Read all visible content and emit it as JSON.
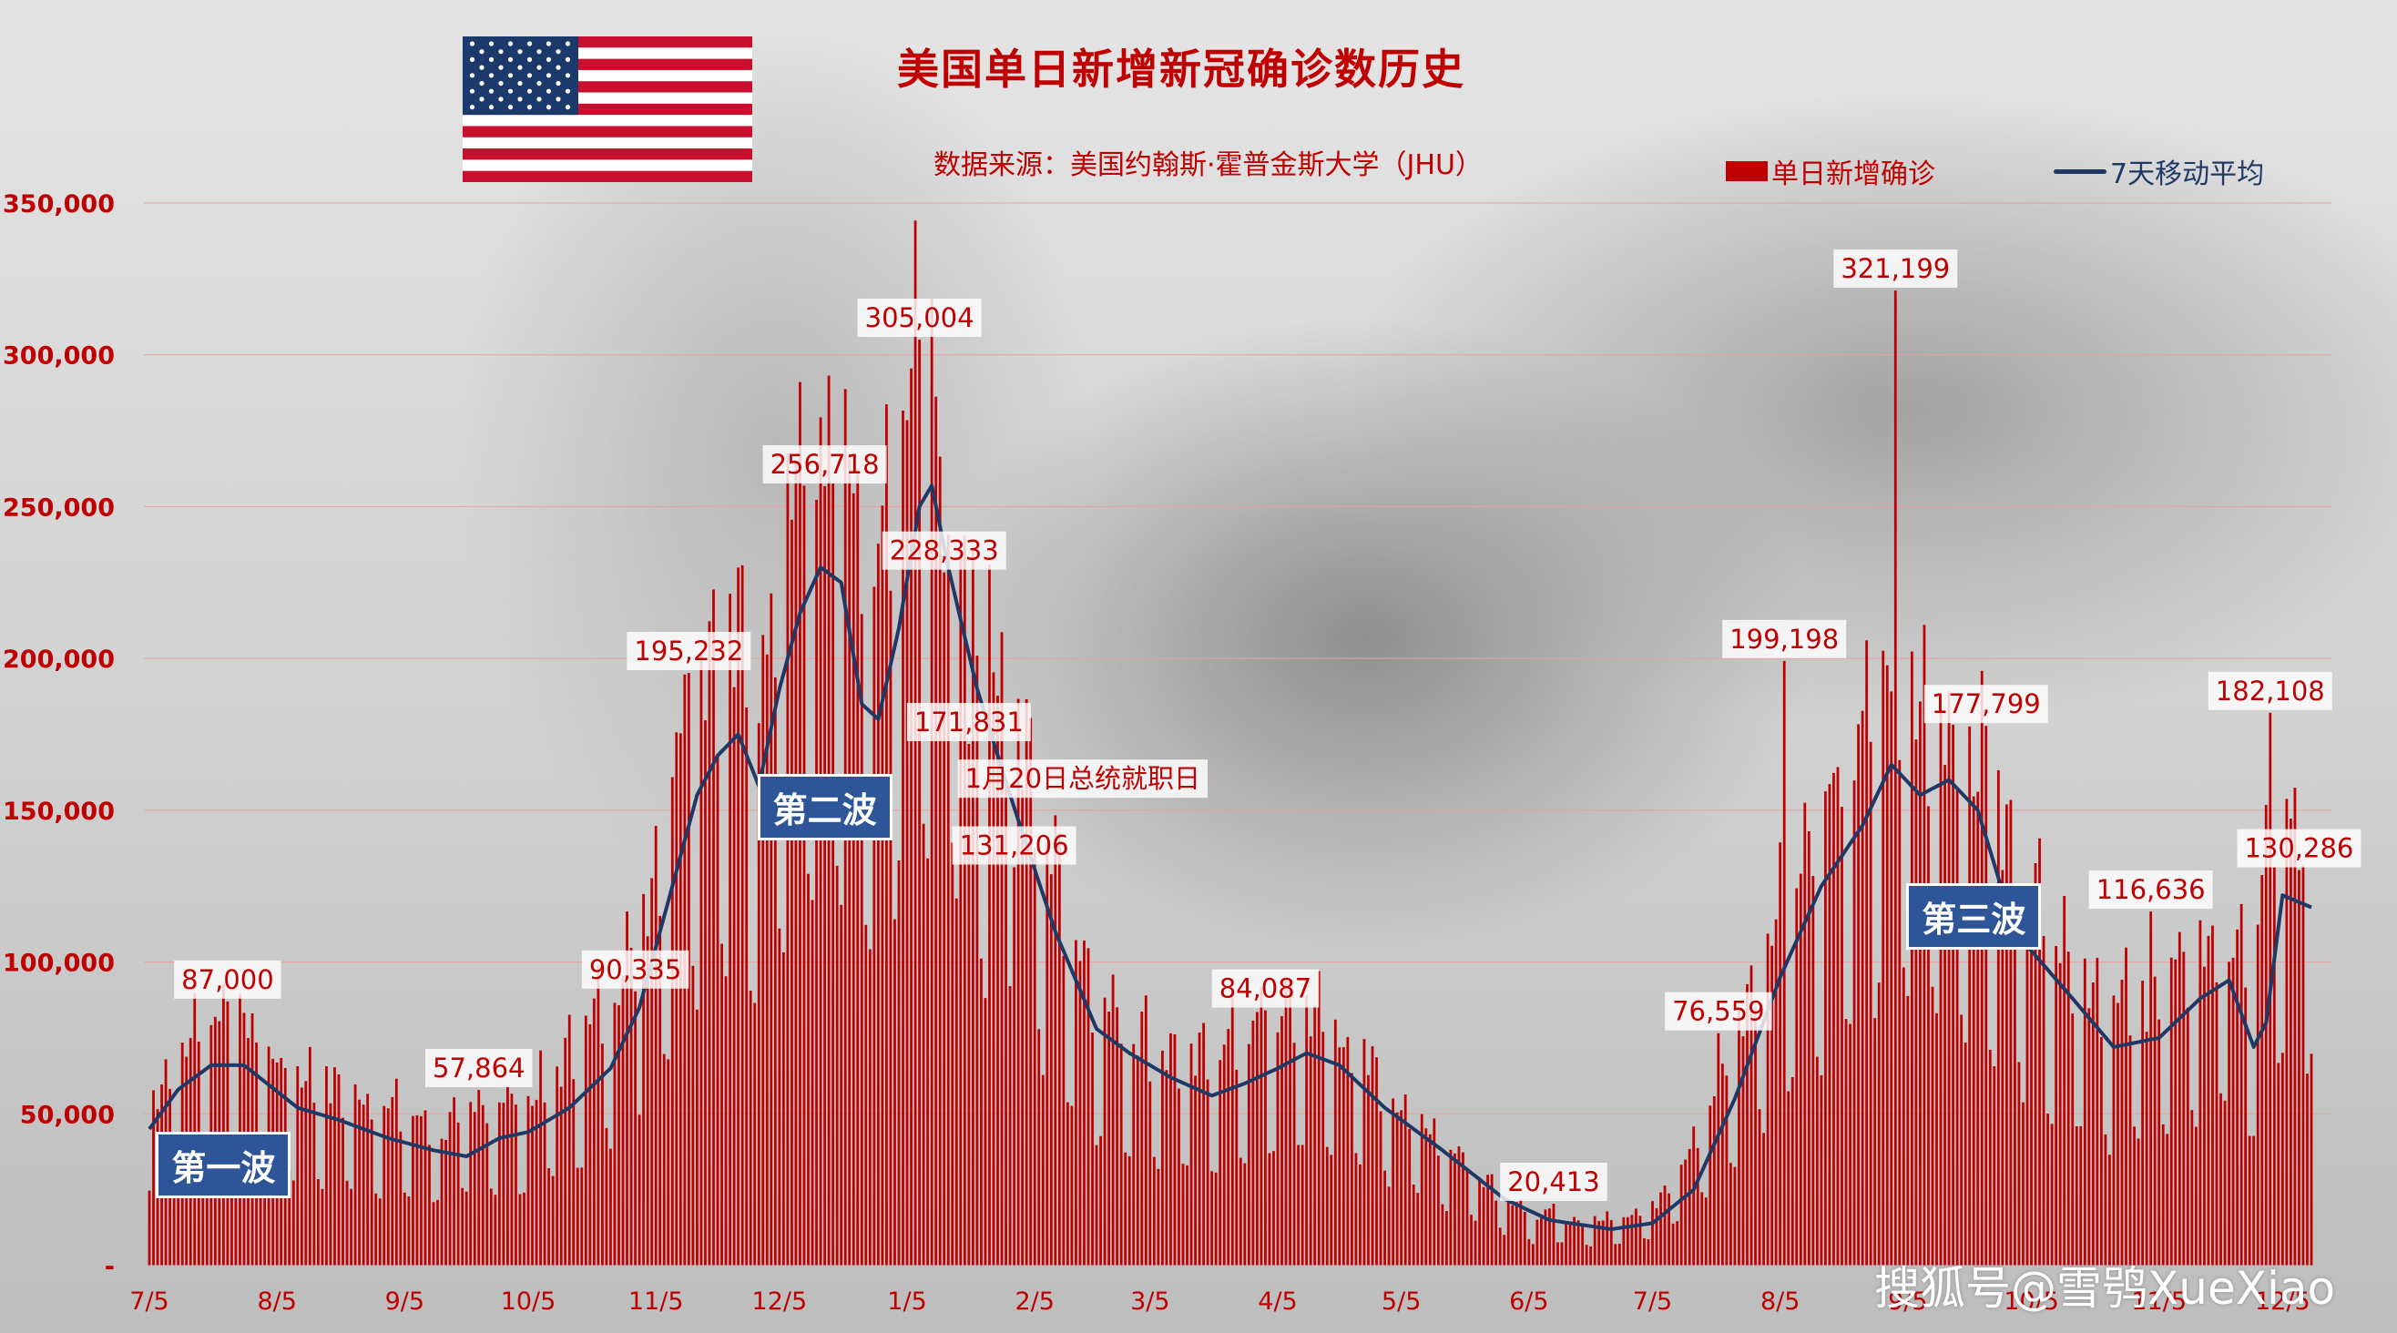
{
  "title": "美国单日新增新冠确诊数历史",
  "subtitle": "数据来源：美国约翰斯·霍普金斯大学（JHU）",
  "watermark": "搜狐号@雪鸮XueXiao",
  "colors": {
    "bars": "#c00000",
    "line": "#203864",
    "wave_box": "#2e5597",
    "label_text": "#c00000"
  },
  "icons": {
    "flag": "us-flag-icon"
  },
  "chart_data": {
    "type": "bar",
    "legend": {
      "position": "top-right",
      "bar_label": "单日新增确诊",
      "line_label": "7天移动平均"
    },
    "ylim": [
      0,
      350000
    ],
    "grid": true,
    "y_ticks": [
      {
        "value": 0,
        "label": "-"
      },
      {
        "value": 50000,
        "label": "50,000"
      },
      {
        "value": 100000,
        "label": "100,000"
      },
      {
        "value": 150000,
        "label": "150,000"
      },
      {
        "value": 200000,
        "label": "200,000"
      },
      {
        "value": 250000,
        "label": "250,000"
      },
      {
        "value": 300000,
        "label": "300,000"
      },
      {
        "value": 350000,
        "label": "350,000"
      }
    ],
    "x_range": [
      "2020-07-05",
      "2021-12-12"
    ],
    "x_ticks": [
      {
        "date": "2020-07-05",
        "label": "7/5"
      },
      {
        "date": "2020-08-05",
        "label": "8/5"
      },
      {
        "date": "2020-09-05",
        "label": "9/5"
      },
      {
        "date": "2020-10-05",
        "label": "10/5"
      },
      {
        "date": "2020-11-05",
        "label": "11/5"
      },
      {
        "date": "2020-12-05",
        "label": "12/5"
      },
      {
        "date": "2021-01-05",
        "label": "1/5"
      },
      {
        "date": "2021-02-05",
        "label": "2/5"
      },
      {
        "date": "2021-03-05",
        "label": "3/5"
      },
      {
        "date": "2021-04-05",
        "label": "4/5"
      },
      {
        "date": "2021-05-05",
        "label": "5/5"
      },
      {
        "date": "2021-06-05",
        "label": "6/5"
      },
      {
        "date": "2021-07-05",
        "label": "7/5"
      },
      {
        "date": "2021-08-05",
        "label": "8/5"
      },
      {
        "date": "2021-09-05",
        "label": "9/5"
      },
      {
        "date": "2021-10-05",
        "label": "10/5"
      },
      {
        "date": "2021-11-05",
        "label": "11/5"
      },
      {
        "date": "2021-12-05",
        "label": "12/5"
      }
    ],
    "daily_cases_anchors": [
      [
        "2020-07-05",
        45000
      ],
      [
        "2020-07-18",
        68000
      ],
      [
        "2020-07-25",
        70000
      ],
      [
        "2020-08-05",
        56000
      ],
      [
        "2020-08-20",
        48000
      ],
      [
        "2020-09-05",
        42000
      ],
      [
        "2020-09-14",
        37000
      ],
      [
        "2020-09-25",
        45000
      ],
      [
        "2020-10-05",
        45000
      ],
      [
        "2020-10-15",
        58000
      ],
      [
        "2020-10-25",
        75000
      ],
      [
        "2020-11-05",
        110000
      ],
      [
        "2020-11-13",
        165000
      ],
      [
        "2020-11-22",
        175000
      ],
      [
        "2020-11-30",
        160000
      ],
      [
        "2020-12-07",
        215000
      ],
      [
        "2020-12-15",
        225000
      ],
      [
        "2020-12-22",
        215000
      ],
      [
        "2020-12-27",
        175000
      ],
      [
        "2021-01-02",
        215000
      ],
      [
        "2021-01-08",
        255000
      ],
      [
        "2021-01-14",
        230000
      ],
      [
        "2021-01-22",
        185000
      ],
      [
        "2021-01-31",
        150000
      ],
      [
        "2021-02-10",
        110000
      ],
      [
        "2021-02-20",
        75000
      ],
      [
        "2021-03-05",
        62000
      ],
      [
        "2021-03-15",
        55000
      ],
      [
        "2021-03-25",
        62000
      ],
      [
        "2021-04-05",
        68000
      ],
      [
        "2021-04-12",
        72000
      ],
      [
        "2021-04-20",
        64000
      ],
      [
        "2021-05-05",
        45000
      ],
      [
        "2021-05-20",
        30000
      ],
      [
        "2021-06-05",
        14000
      ],
      [
        "2021-06-20",
        12000
      ],
      [
        "2021-07-05",
        16000
      ],
      [
        "2021-07-20",
        45000
      ],
      [
        "2021-08-05",
        100000
      ],
      [
        "2021-08-20",
        140000
      ],
      [
        "2021-09-01",
        160000
      ],
      [
        "2021-09-10",
        150000
      ],
      [
        "2021-09-20",
        145000
      ],
      [
        "2021-10-01",
        110000
      ],
      [
        "2021-10-15",
        85000
      ],
      [
        "2021-10-25",
        72000
      ],
      [
        "2021-11-05",
        75000
      ],
      [
        "2021-11-15",
        88000
      ],
      [
        "2021-11-24",
        92000
      ],
      [
        "2021-11-27",
        70000
      ],
      [
        "2021-12-01",
        120000
      ],
      [
        "2021-12-12",
        120000
      ]
    ],
    "moving_average_anchors": [
      [
        "2020-07-05",
        45000
      ],
      [
        "2020-07-12",
        58000
      ],
      [
        "2020-07-20",
        66000
      ],
      [
        "2020-07-28",
        66000
      ],
      [
        "2020-08-10",
        52000
      ],
      [
        "2020-08-20",
        48000
      ],
      [
        "2020-09-01",
        42000
      ],
      [
        "2020-09-12",
        38000
      ],
      [
        "2020-09-20",
        36000
      ],
      [
        "2020-09-28",
        42000
      ],
      [
        "2020-10-05",
        44000
      ],
      [
        "2020-10-15",
        52000
      ],
      [
        "2020-10-25",
        65000
      ],
      [
        "2020-11-01",
        85000
      ],
      [
        "2020-11-05",
        105000
      ],
      [
        "2020-11-10",
        130000
      ],
      [
        "2020-11-15",
        155000
      ],
      [
        "2020-11-20",
        168000
      ],
      [
        "2020-11-25",
        175000
      ],
      [
        "2020-11-30",
        158000
      ],
      [
        "2020-12-05",
        190000
      ],
      [
        "2020-12-10",
        215000
      ],
      [
        "2020-12-15",
        230000
      ],
      [
        "2020-12-20",
        225000
      ],
      [
        "2020-12-25",
        185000
      ],
      [
        "2020-12-29",
        180000
      ],
      [
        "2021-01-03",
        210000
      ],
      [
        "2021-01-08",
        250000
      ],
      [
        "2021-01-11",
        257000
      ],
      [
        "2021-01-15",
        230000
      ],
      [
        "2021-01-22",
        190000
      ],
      [
        "2021-01-30",
        155000
      ],
      [
        "2021-02-10",
        110000
      ],
      [
        "2021-02-20",
        78000
      ],
      [
        "2021-02-28",
        70000
      ],
      [
        "2021-03-10",
        62000
      ],
      [
        "2021-03-20",
        56000
      ],
      [
        "2021-03-28",
        60000
      ],
      [
        "2021-04-05",
        65000
      ],
      [
        "2021-04-12",
        70000
      ],
      [
        "2021-04-20",
        66000
      ],
      [
        "2021-05-01",
        52000
      ],
      [
        "2021-05-15",
        38000
      ],
      [
        "2021-05-30",
        22000
      ],
      [
        "2021-06-10",
        15000
      ],
      [
        "2021-06-25",
        12000
      ],
      [
        "2021-07-05",
        14000
      ],
      [
        "2021-07-15",
        25000
      ],
      [
        "2021-07-25",
        55000
      ],
      [
        "2021-08-05",
        95000
      ],
      [
        "2021-08-15",
        125000
      ],
      [
        "2021-08-25",
        145000
      ],
      [
        "2021-09-01",
        165000
      ],
      [
        "2021-09-08",
        155000
      ],
      [
        "2021-09-15",
        160000
      ],
      [
        "2021-09-22",
        150000
      ],
      [
        "2021-10-01",
        110000
      ],
      [
        "2021-10-15",
        88000
      ],
      [
        "2021-10-25",
        72000
      ],
      [
        "2021-11-05",
        75000
      ],
      [
        "2021-11-15",
        88000
      ],
      [
        "2021-11-22",
        94000
      ],
      [
        "2021-11-28",
        72000
      ],
      [
        "2021-12-01",
        80000
      ],
      [
        "2021-12-05",
        122000
      ],
      [
        "2021-12-12",
        118000
      ]
    ],
    "annotations": [
      {
        "date": "2020-07-24",
        "value": 87000,
        "label": "87,000"
      },
      {
        "date": "2020-09-23",
        "value": 57864,
        "label": "57,864"
      },
      {
        "date": "2020-10-31",
        "value": 90335,
        "label": "90,335"
      },
      {
        "date": "2020-11-13",
        "value": 195232,
        "label": "195,232"
      },
      {
        "date": "2020-12-16",
        "value": 256718,
        "label": "256,718"
      },
      {
        "date": "2021-01-08",
        "value": 305004,
        "label": "305,004"
      },
      {
        "date": "2021-01-14",
        "value": 228333,
        "label": "228,333"
      },
      {
        "date": "2021-01-20",
        "value": 171831,
        "label": "171,831"
      },
      {
        "date": "2021-01-31",
        "value": 131206,
        "label": "131,206"
      },
      {
        "date": "2021-04-02",
        "value": 84087,
        "label": "84,087"
      },
      {
        "date": "2021-06-11",
        "value": 20413,
        "label": "20,413"
      },
      {
        "date": "2021-07-21",
        "value": 76559,
        "label": "76,559"
      },
      {
        "date": "2021-08-06",
        "value": 199198,
        "label": "199,198"
      },
      {
        "date": "2021-09-02",
        "value": 321199,
        "label": "321,199"
      },
      {
        "date": "2021-09-24",
        "value": 177799,
        "label": "177,799"
      },
      {
        "date": "2021-11-03",
        "value": 116636,
        "label": "116,636"
      },
      {
        "date": "2021-12-02",
        "value": 182108,
        "label": "182,108"
      },
      {
        "date": "2021-12-09",
        "value": 130286,
        "label": "130,286"
      }
    ],
    "notes": [
      {
        "date": "2021-01-20",
        "label": "1月20日总统就职日"
      }
    ],
    "waves": [
      {
        "date": "2020-07-23",
        "value": 33000,
        "label": "第一波"
      },
      {
        "date": "2020-12-16",
        "value": 151000,
        "label": "第二波"
      },
      {
        "date": "2021-09-21",
        "value": 115000,
        "label": "第三波"
      }
    ]
  }
}
